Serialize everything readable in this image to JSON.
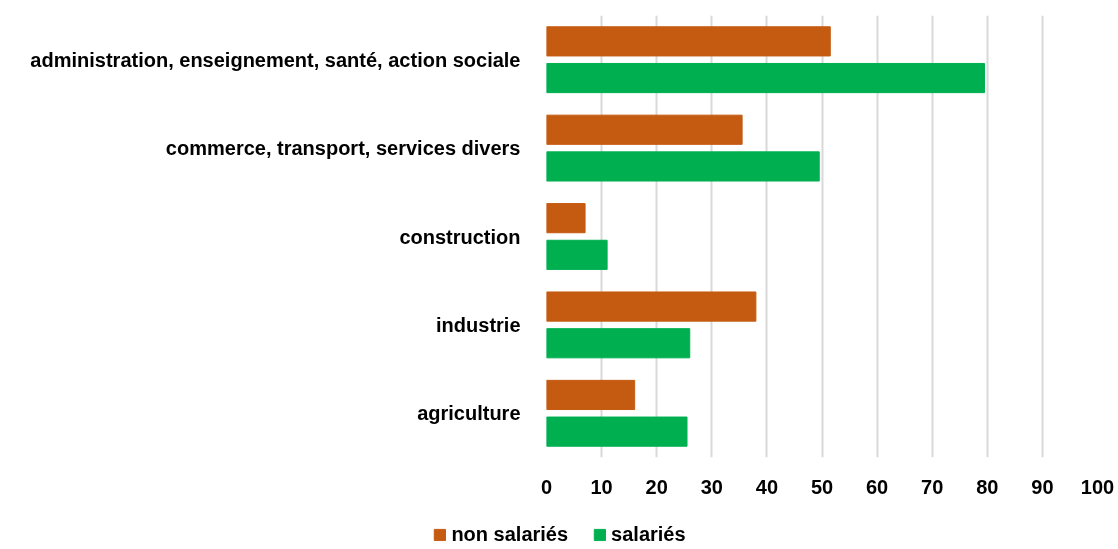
{
  "chart_data": {
    "type": "bar",
    "orientation": "horizontal",
    "categories": [
      "administration, enseignement, santé, action sociale",
      "commerce, transport, services divers",
      "construction",
      "industrie",
      "agriculture"
    ],
    "series": [
      {
        "name": "non salariés",
        "color": "#c55a11",
        "values": [
          51.5,
          35.5,
          7,
          38,
          16
        ]
      },
      {
        "name": "salariés",
        "color": "#00b050",
        "values": [
          79.5,
          49.5,
          11,
          26,
          25.5
        ]
      }
    ],
    "xlim": [
      0,
      100
    ],
    "xticks": [
      0,
      10,
      20,
      30,
      40,
      50,
      60,
      70,
      80,
      90,
      100
    ],
    "grid": "x",
    "legend": "bottom"
  }
}
